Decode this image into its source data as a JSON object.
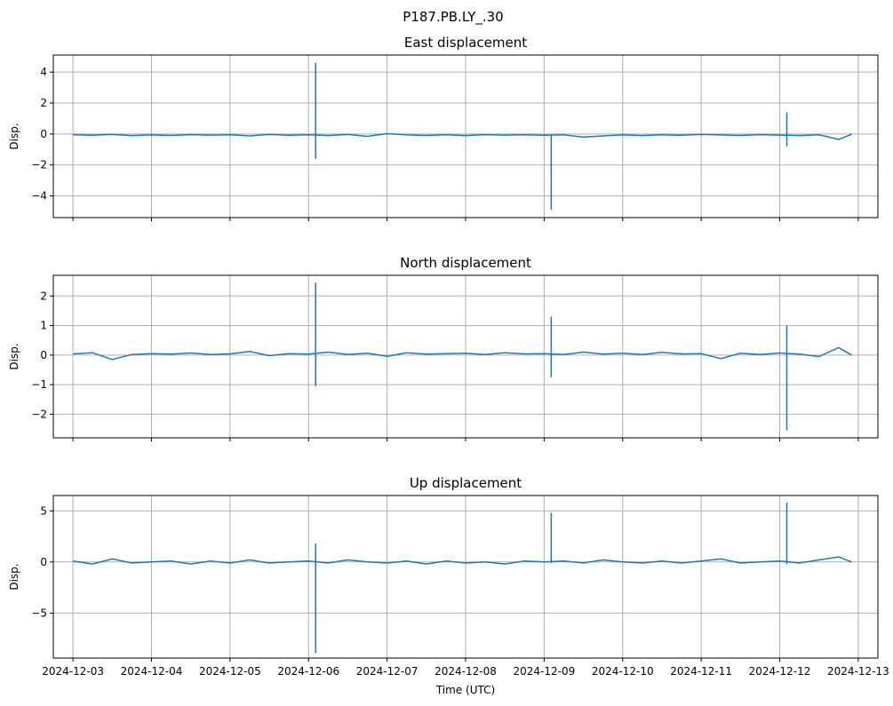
{
  "figure": {
    "suptitle": "P187.PB.LY_.30",
    "xlabel": "Time (UTC)",
    "line_color": "#1f77b4",
    "grid_color": "#b0b0b0"
  },
  "chart_data": [
    {
      "type": "line",
      "title": "East displacement",
      "ylabel": "Disp.",
      "xlim": [
        "2024-12-02T18:00",
        "2024-12-13T06:00"
      ],
      "ylim": [
        -5.4,
        5.1
      ],
      "yticks": [
        4,
        2,
        0,
        -2,
        -4
      ],
      "ytick_labels": [
        "4",
        "2",
        "0",
        "−2",
        "−4"
      ],
      "grid": true,
      "baseline": [
        {
          "x": "2024-12-03T00:00",
          "y": -0.05
        },
        {
          "x": "2024-12-03T06:00",
          "y": -0.08
        },
        {
          "x": "2024-12-03T12:00",
          "y": -0.03
        },
        {
          "x": "2024-12-03T18:00",
          "y": -0.1
        },
        {
          "x": "2024-12-04T00:00",
          "y": -0.06
        },
        {
          "x": "2024-12-04T06:00",
          "y": -0.09
        },
        {
          "x": "2024-12-04T12:00",
          "y": -0.04
        },
        {
          "x": "2024-12-04T18:00",
          "y": -0.07
        },
        {
          "x": "2024-12-05T00:00",
          "y": -0.05
        },
        {
          "x": "2024-12-05T06:00",
          "y": -0.12
        },
        {
          "x": "2024-12-05T12:00",
          "y": -0.03
        },
        {
          "x": "2024-12-05T18:00",
          "y": -0.08
        },
        {
          "x": "2024-12-06T00:00",
          "y": -0.05
        },
        {
          "x": "2024-12-06T06:00",
          "y": -0.1
        },
        {
          "x": "2024-12-06T12:00",
          "y": -0.03
        },
        {
          "x": "2024-12-06T18:00",
          "y": -0.15
        },
        {
          "x": "2024-12-07T00:00",
          "y": 0.02
        },
        {
          "x": "2024-12-07T06:00",
          "y": -0.06
        },
        {
          "x": "2024-12-07T12:00",
          "y": -0.09
        },
        {
          "x": "2024-12-07T18:00",
          "y": -0.05
        },
        {
          "x": "2024-12-08T00:00",
          "y": -0.1
        },
        {
          "x": "2024-12-08T06:00",
          "y": -0.04
        },
        {
          "x": "2024-12-08T12:00",
          "y": -0.07
        },
        {
          "x": "2024-12-08T18:00",
          "y": -0.05
        },
        {
          "x": "2024-12-09T00:00",
          "y": -0.08
        },
        {
          "x": "2024-12-09T06:00",
          "y": -0.05
        },
        {
          "x": "2024-12-09T12:00",
          "y": -0.2
        },
        {
          "x": "2024-12-09T18:00",
          "y": -0.12
        },
        {
          "x": "2024-12-10T00:00",
          "y": -0.06
        },
        {
          "x": "2024-12-10T06:00",
          "y": -0.1
        },
        {
          "x": "2024-12-10T12:00",
          "y": -0.05
        },
        {
          "x": "2024-12-10T18:00",
          "y": -0.08
        },
        {
          "x": "2024-12-11T00:00",
          "y": -0.03
        },
        {
          "x": "2024-12-11T06:00",
          "y": -0.06
        },
        {
          "x": "2024-12-11T12:00",
          "y": -0.09
        },
        {
          "x": "2024-12-11T18:00",
          "y": -0.04
        },
        {
          "x": "2024-12-12T00:00",
          "y": -0.07
        },
        {
          "x": "2024-12-12T06:00",
          "y": -0.1
        },
        {
          "x": "2024-12-12T12:00",
          "y": -0.05
        },
        {
          "x": "2024-12-12T18:00",
          "y": -0.35
        },
        {
          "x": "2024-12-12T22:00",
          "y": -0.02
        }
      ],
      "spikes": [
        {
          "x": "2024-12-06T02:10",
          "y_max": 4.6,
          "y_min": -1.6
        },
        {
          "x": "2024-12-09T02:10",
          "y_max": -0.1,
          "y_min": -4.9
        },
        {
          "x": "2024-12-12T02:10",
          "y_max": 1.4,
          "y_min": -0.8
        }
      ]
    },
    {
      "type": "line",
      "title": "North displacement",
      "ylabel": "Disp.",
      "xlim": [
        "2024-12-02T18:00",
        "2024-12-13T06:00"
      ],
      "ylim": [
        -2.8,
        2.7
      ],
      "yticks": [
        2,
        1,
        0,
        -1,
        -2
      ],
      "ytick_labels": [
        "2",
        "1",
        "0",
        "−1",
        "−2"
      ],
      "grid": true,
      "baseline": [
        {
          "x": "2024-12-03T00:00",
          "y": 0.04
        },
        {
          "x": "2024-12-03T06:00",
          "y": 0.08
        },
        {
          "x": "2024-12-03T12:00",
          "y": -0.15
        },
        {
          "x": "2024-12-03T18:00",
          "y": 0.02
        },
        {
          "x": "2024-12-04T00:00",
          "y": 0.05
        },
        {
          "x": "2024-12-04T06:00",
          "y": 0.03
        },
        {
          "x": "2024-12-04T12:00",
          "y": 0.07
        },
        {
          "x": "2024-12-04T18:00",
          "y": 0.02
        },
        {
          "x": "2024-12-05T00:00",
          "y": 0.04
        },
        {
          "x": "2024-12-05T06:00",
          "y": 0.12
        },
        {
          "x": "2024-12-05T12:00",
          "y": -0.02
        },
        {
          "x": "2024-12-05T18:00",
          "y": 0.05
        },
        {
          "x": "2024-12-06T00:00",
          "y": 0.03
        },
        {
          "x": "2024-12-06T06:00",
          "y": 0.1
        },
        {
          "x": "2024-12-06T12:00",
          "y": 0.02
        },
        {
          "x": "2024-12-06T18:00",
          "y": 0.06
        },
        {
          "x": "2024-12-07T00:00",
          "y": -0.04
        },
        {
          "x": "2024-12-07T06:00",
          "y": 0.08
        },
        {
          "x": "2024-12-07T12:00",
          "y": 0.03
        },
        {
          "x": "2024-12-07T18:00",
          "y": 0.05
        },
        {
          "x": "2024-12-08T00:00",
          "y": 0.06
        },
        {
          "x": "2024-12-08T06:00",
          "y": 0.02
        },
        {
          "x": "2024-12-08T12:00",
          "y": 0.08
        },
        {
          "x": "2024-12-08T18:00",
          "y": 0.04
        },
        {
          "x": "2024-12-09T00:00",
          "y": 0.05
        },
        {
          "x": "2024-12-09T06:00",
          "y": 0.02
        },
        {
          "x": "2024-12-09T12:00",
          "y": 0.1
        },
        {
          "x": "2024-12-09T18:00",
          "y": 0.03
        },
        {
          "x": "2024-12-10T00:00",
          "y": 0.06
        },
        {
          "x": "2024-12-10T06:00",
          "y": 0.02
        },
        {
          "x": "2024-12-10T12:00",
          "y": 0.09
        },
        {
          "x": "2024-12-10T18:00",
          "y": 0.04
        },
        {
          "x": "2024-12-11T00:00",
          "y": 0.05
        },
        {
          "x": "2024-12-11T06:00",
          "y": -0.12
        },
        {
          "x": "2024-12-11T12:00",
          "y": 0.06
        },
        {
          "x": "2024-12-11T18:00",
          "y": 0.02
        },
        {
          "x": "2024-12-12T00:00",
          "y": 0.07
        },
        {
          "x": "2024-12-12T06:00",
          "y": 0.03
        },
        {
          "x": "2024-12-12T12:00",
          "y": -0.05
        },
        {
          "x": "2024-12-12T18:00",
          "y": 0.25
        },
        {
          "x": "2024-12-12T22:00",
          "y": 0.0
        }
      ],
      "spikes": [
        {
          "x": "2024-12-06T02:10",
          "y_max": 2.45,
          "y_min": -1.05
        },
        {
          "x": "2024-12-09T02:10",
          "y_max": 1.3,
          "y_min": -0.75
        },
        {
          "x": "2024-12-12T02:10",
          "y_max": 1.0,
          "y_min": -2.55
        }
      ]
    },
    {
      "type": "line",
      "title": "Up displacement",
      "ylabel": "Disp.",
      "xlim": [
        "2024-12-02T18:00",
        "2024-12-13T06:00"
      ],
      "ylim": [
        -9.4,
        6.5
      ],
      "yticks": [
        5,
        0,
        -5
      ],
      "ytick_labels": [
        "5",
        "0",
        "−5"
      ],
      "grid": true,
      "baseline": [
        {
          "x": "2024-12-03T00:00",
          "y": 0.1
        },
        {
          "x": "2024-12-03T06:00",
          "y": -0.2
        },
        {
          "x": "2024-12-03T12:00",
          "y": 0.3
        },
        {
          "x": "2024-12-03T18:00",
          "y": -0.1
        },
        {
          "x": "2024-12-04T00:00",
          "y": 0.0
        },
        {
          "x": "2024-12-04T06:00",
          "y": 0.1
        },
        {
          "x": "2024-12-04T12:00",
          "y": -0.2
        },
        {
          "x": "2024-12-04T18:00",
          "y": 0.1
        },
        {
          "x": "2024-12-05T00:00",
          "y": -0.1
        },
        {
          "x": "2024-12-05T06:00",
          "y": 0.2
        },
        {
          "x": "2024-12-05T12:00",
          "y": -0.1
        },
        {
          "x": "2024-12-05T18:00",
          "y": 0.0
        },
        {
          "x": "2024-12-06T00:00",
          "y": 0.1
        },
        {
          "x": "2024-12-06T06:00",
          "y": -0.1
        },
        {
          "x": "2024-12-06T12:00",
          "y": 0.2
        },
        {
          "x": "2024-12-06T18:00",
          "y": 0.0
        },
        {
          "x": "2024-12-07T00:00",
          "y": -0.1
        },
        {
          "x": "2024-12-07T06:00",
          "y": 0.1
        },
        {
          "x": "2024-12-07T12:00",
          "y": -0.2
        },
        {
          "x": "2024-12-07T18:00",
          "y": 0.1
        },
        {
          "x": "2024-12-08T00:00",
          "y": -0.1
        },
        {
          "x": "2024-12-08T06:00",
          "y": 0.0
        },
        {
          "x": "2024-12-08T12:00",
          "y": -0.2
        },
        {
          "x": "2024-12-08T18:00",
          "y": 0.1
        },
        {
          "x": "2024-12-09T00:00",
          "y": 0.0
        },
        {
          "x": "2024-12-09T06:00",
          "y": 0.1
        },
        {
          "x": "2024-12-09T12:00",
          "y": -0.1
        },
        {
          "x": "2024-12-09T18:00",
          "y": 0.2
        },
        {
          "x": "2024-12-10T00:00",
          "y": 0.0
        },
        {
          "x": "2024-12-10T06:00",
          "y": -0.1
        },
        {
          "x": "2024-12-10T12:00",
          "y": 0.1
        },
        {
          "x": "2024-12-10T18:00",
          "y": -0.1
        },
        {
          "x": "2024-12-11T00:00",
          "y": 0.1
        },
        {
          "x": "2024-12-11T06:00",
          "y": 0.3
        },
        {
          "x": "2024-12-11T12:00",
          "y": -0.1
        },
        {
          "x": "2024-12-11T18:00",
          "y": 0.0
        },
        {
          "x": "2024-12-12T00:00",
          "y": 0.1
        },
        {
          "x": "2024-12-12T06:00",
          "y": -0.1
        },
        {
          "x": "2024-12-12T12:00",
          "y": 0.2
        },
        {
          "x": "2024-12-12T18:00",
          "y": 0.5
        },
        {
          "x": "2024-12-12T22:00",
          "y": 0.0
        }
      ],
      "spikes": [
        {
          "x": "2024-12-06T02:10",
          "y_max": 1.8,
          "y_min": -8.9
        },
        {
          "x": "2024-12-09T02:10",
          "y_max": 4.8,
          "y_min": -0.1
        },
        {
          "x": "2024-12-12T02:10",
          "y_max": 5.8,
          "y_min": -0.2
        }
      ]
    }
  ],
  "xticks": [
    "2024-12-03",
    "2024-12-04",
    "2024-12-05",
    "2024-12-06",
    "2024-12-07",
    "2024-12-08",
    "2024-12-09",
    "2024-12-10",
    "2024-12-11",
    "2024-12-12",
    "2024-12-13"
  ]
}
